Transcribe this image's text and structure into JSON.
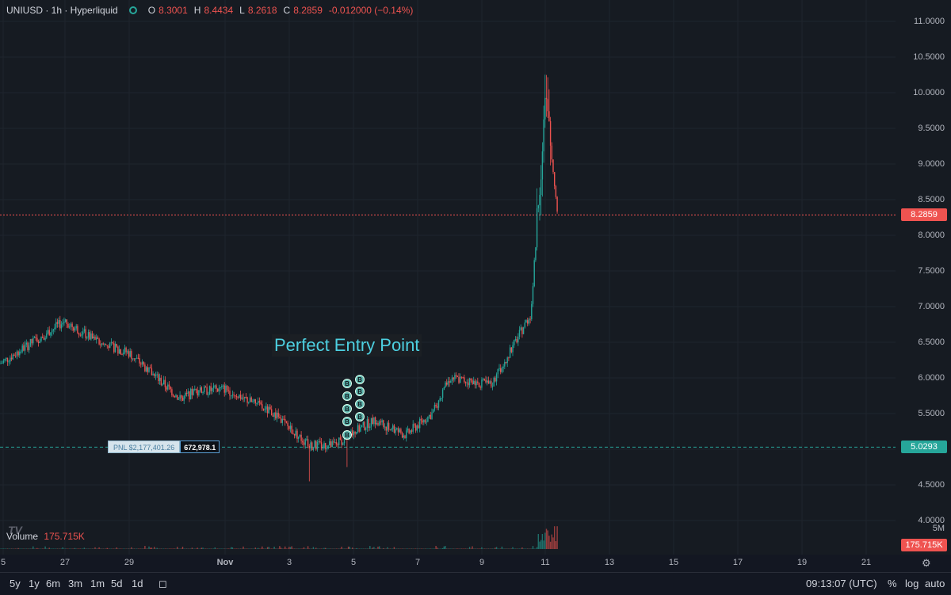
{
  "legend": {
    "symbol": "UNIUSD · 1h · Hyperliquid",
    "o_label": "O",
    "o_value": "8.3001",
    "h_label": "H",
    "h_value": "8.4434",
    "l_label": "L",
    "l_value": "8.2618",
    "c_label": "C",
    "c_value": "8.2859",
    "change": "-0.012000 (−0.14%)"
  },
  "price_axis": {
    "ticks": [
      "11.0000",
      "10.5000",
      "10.0000",
      "9.5000",
      "9.0000",
      "8.5000",
      "8.0000",
      "7.5000",
      "7.0000",
      "6.5000",
      "6.0000",
      "5.5000",
      "5.0000",
      "4.5000",
      "4.0000"
    ],
    "current_price_tag": "8.2859",
    "entry_price_tag": "5.0293",
    "volume_scale": "5M",
    "volume_tag": "175.715K"
  },
  "volume_legend": {
    "label": "Volume",
    "value": "175.715K"
  },
  "x_axis": {
    "labels": [
      "5",
      "27",
      "29",
      "Nov",
      "3",
      "5",
      "7",
      "9",
      "11",
      "13",
      "15",
      "17",
      "19",
      "21"
    ]
  },
  "annotation": {
    "text": "Perfect Entry Point"
  },
  "pnl": {
    "label": "PNL $2,177,401.26",
    "size": "672,978.1"
  },
  "markers": {
    "label": "B"
  },
  "toolbar": {
    "timeframes": [
      "5y",
      "1y",
      "6m",
      "3m",
      "1m",
      "5d",
      "1d"
    ],
    "time": "09:13:07 (UTC)",
    "percent": "%",
    "log": "log",
    "auto": "auto"
  },
  "logo": "TV",
  "colors": {
    "up": "#26a69a",
    "down": "#ef5350",
    "background": "#161b22",
    "annotation": "#4dd0e1"
  },
  "chart_data": {
    "type": "candlestick",
    "ylim": [
      4.0,
      11.0
    ],
    "path_points": [
      [
        "26 Oct",
        6.2
      ],
      [
        "27 Oct",
        6.8
      ],
      [
        "28 Oct",
        6.5
      ],
      [
        "29 Oct",
        6.35
      ],
      [
        "30 Oct",
        5.7
      ],
      [
        "31 Oct",
        5.8
      ],
      [
        "1 Nov",
        5.85
      ],
      [
        "2 Nov",
        5.5
      ],
      [
        "3 Nov",
        5.05
      ],
      [
        "4 Nov",
        5.05
      ],
      [
        "5 Nov",
        5.4
      ],
      [
        "6 Nov",
        5.2
      ],
      [
        "7 Nov",
        5.5
      ],
      [
        "8 Nov",
        6.0
      ],
      [
        "9 Nov",
        5.9
      ],
      [
        "10 Nov",
        6.9
      ],
      [
        "11 Nov",
        9.9
      ],
      [
        "11 Nov 09:00",
        8.29
      ]
    ],
    "current_price": 8.2859,
    "entry_price": 5.0293
  }
}
